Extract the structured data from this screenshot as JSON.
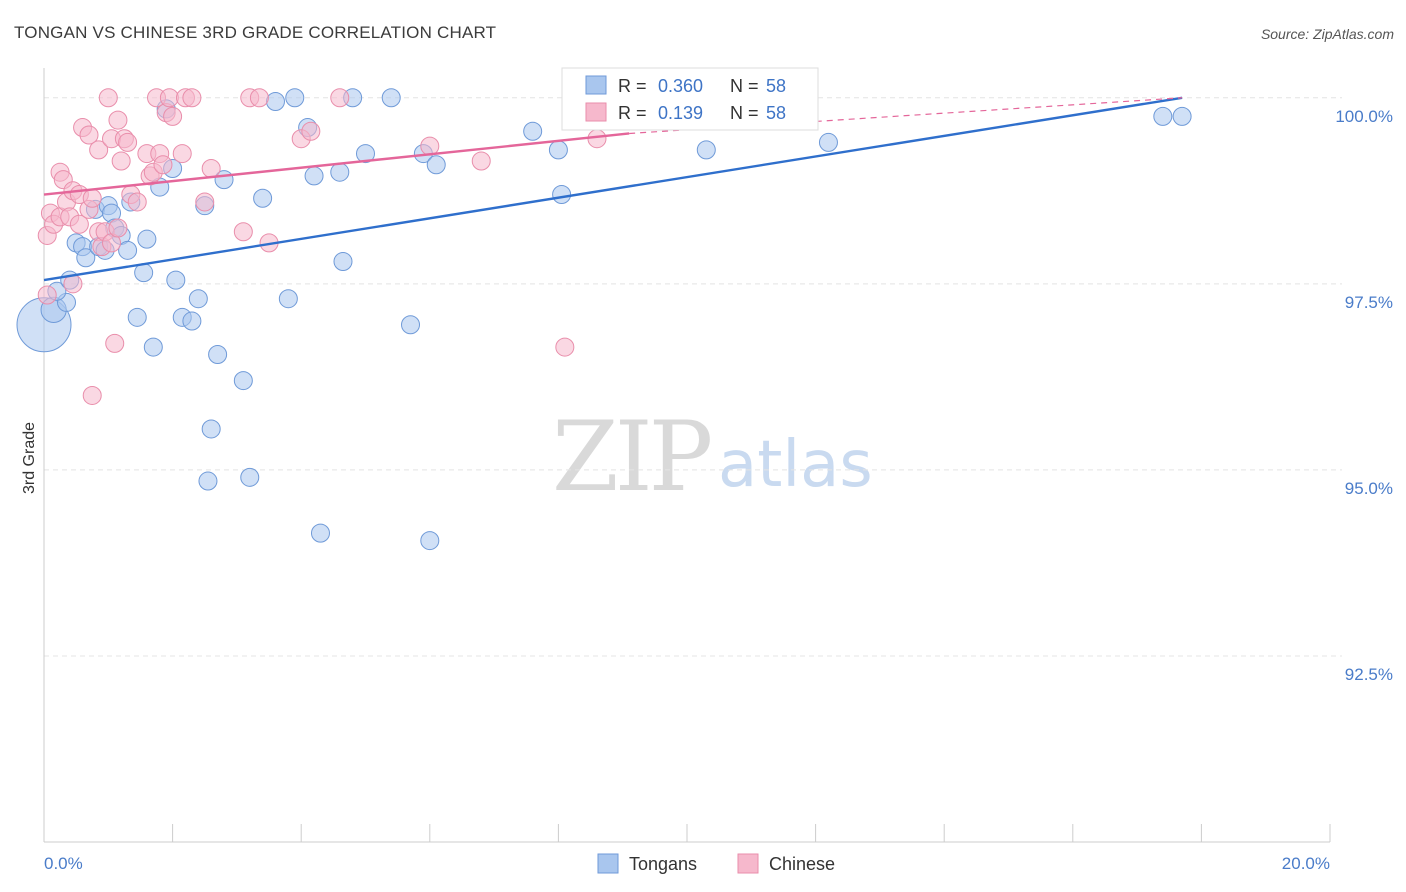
{
  "chart_data": {
    "type": "scatter",
    "title": "TONGAN VS CHINESE 3RD GRADE CORRELATION CHART",
    "source": "Source: ZipAtlas.com",
    "ylabel": "3rd Grade",
    "xlim": [
      0,
      20
    ],
    "ylim": [
      90,
      100.4
    ],
    "y_ticks": [
      {
        "value": 100,
        "label": "100.0%"
      },
      {
        "value": 97.5,
        "label": "97.5%"
      },
      {
        "value": 95,
        "label": "95.0%"
      },
      {
        "value": 92.5,
        "label": "92.5%"
      }
    ],
    "x_ticks": [
      {
        "value": 0,
        "label": "0.0%"
      },
      {
        "value": 20,
        "label": "20.0%"
      }
    ],
    "watermark": {
      "part1": "ZIP",
      "part2": "atlas"
    },
    "legend": {
      "items": [
        "Tongans",
        "Chinese"
      ]
    },
    "stats": [
      {
        "r_label": "R = ",
        "r": "0.360",
        "n_label": "N = ",
        "n": "58"
      },
      {
        "r_label": "R = ",
        "r": "0.139",
        "n_label": "N = ",
        "n": "58"
      }
    ],
    "series": [
      {
        "name": "Tongans",
        "fill": "#a9c6ee",
        "stroke": "#6f9ad8",
        "line_color": "#2f6fcc",
        "trend": {
          "x0": 0,
          "y0": 97.55,
          "x1": 17.7,
          "y1": 100.0
        },
        "points": [
          [
            0.0,
            96.95,
            3
          ],
          [
            0.15,
            97.15,
            1.4
          ],
          [
            0.35,
            97.25,
            1
          ],
          [
            0.2,
            97.4,
            1
          ],
          [
            0.4,
            97.55,
            1
          ],
          [
            0.5,
            98.05,
            1
          ],
          [
            0.6,
            98.0,
            1
          ],
          [
            0.65,
            97.85,
            1
          ],
          [
            0.8,
            98.5,
            1
          ],
          [
            0.85,
            98.0,
            1
          ],
          [
            0.95,
            97.95,
            1
          ],
          [
            1.0,
            98.55,
            1
          ],
          [
            1.05,
            98.45,
            1
          ],
          [
            1.1,
            98.25,
            1
          ],
          [
            1.2,
            98.15,
            1
          ],
          [
            1.3,
            97.95,
            1
          ],
          [
            1.35,
            98.6,
            1
          ],
          [
            1.45,
            97.05,
            1
          ],
          [
            1.55,
            97.65,
            1
          ],
          [
            1.6,
            98.1,
            1
          ],
          [
            1.7,
            96.65,
            1
          ],
          [
            1.8,
            98.8,
            1
          ],
          [
            1.9,
            99.85,
            1
          ],
          [
            2.0,
            99.05,
            1
          ],
          [
            2.05,
            97.55,
            1
          ],
          [
            2.15,
            97.05,
            1
          ],
          [
            2.3,
            97.0,
            1
          ],
          [
            2.4,
            97.3,
            1
          ],
          [
            2.5,
            98.55,
            1
          ],
          [
            2.55,
            94.85,
            1
          ],
          [
            2.6,
            95.55,
            1
          ],
          [
            2.7,
            96.55,
            1
          ],
          [
            2.8,
            98.9,
            1
          ],
          [
            3.1,
            96.2,
            1
          ],
          [
            3.2,
            94.9,
            1
          ],
          [
            3.4,
            98.65,
            1
          ],
          [
            3.6,
            99.95,
            1
          ],
          [
            3.8,
            97.3,
            1
          ],
          [
            3.9,
            100.0,
            1
          ],
          [
            4.1,
            99.6,
            1
          ],
          [
            4.2,
            98.95,
            1
          ],
          [
            4.3,
            94.15,
            1
          ],
          [
            4.6,
            99.0,
            1
          ],
          [
            4.65,
            97.8,
            1
          ],
          [
            4.8,
            100.0,
            1
          ],
          [
            5.0,
            99.25,
            1
          ],
          [
            5.4,
            100.0,
            1
          ],
          [
            5.7,
            96.95,
            1
          ],
          [
            5.9,
            99.25,
            1
          ],
          [
            6.0,
            94.05,
            1
          ],
          [
            6.1,
            99.1,
            1
          ],
          [
            7.6,
            99.55,
            1
          ],
          [
            8.0,
            99.3,
            1
          ],
          [
            8.05,
            98.7,
            1
          ],
          [
            10.3,
            99.3,
            1
          ],
          [
            12.2,
            99.4,
            1
          ],
          [
            17.4,
            99.75,
            1
          ],
          [
            17.7,
            99.75,
            1
          ]
        ]
      },
      {
        "name": "Chinese",
        "fill": "#f6b8cc",
        "stroke": "#e98eab",
        "line_color": "#e4669a",
        "trend": {
          "x0": 0,
          "y0": 98.7,
          "x1": 9.1,
          "y1": 99.52
        },
        "trend_ext": {
          "x0": 9.1,
          "y0": 99.52,
          "x1": 17.7,
          "y1": 100.0
        },
        "points": [
          [
            0.05,
            97.35,
            1
          ],
          [
            0.05,
            98.15,
            1
          ],
          [
            0.1,
            98.45,
            1
          ],
          [
            0.15,
            98.3,
            1
          ],
          [
            0.25,
            98.4,
            1
          ],
          [
            0.25,
            99.0,
            1
          ],
          [
            0.3,
            98.9,
            1
          ],
          [
            0.35,
            98.6,
            1
          ],
          [
            0.4,
            98.4,
            1
          ],
          [
            0.45,
            98.75,
            1
          ],
          [
            0.45,
            97.5,
            1
          ],
          [
            0.55,
            98.7,
            1
          ],
          [
            0.55,
            98.3,
            1
          ],
          [
            0.6,
            99.6,
            1
          ],
          [
            0.7,
            99.5,
            1
          ],
          [
            0.7,
            98.5,
            1
          ],
          [
            0.75,
            98.65,
            1
          ],
          [
            0.75,
            96.0,
            1
          ],
          [
            0.85,
            98.2,
            1
          ],
          [
            0.85,
            99.3,
            1
          ],
          [
            0.9,
            98.0,
            1
          ],
          [
            0.95,
            98.2,
            1
          ],
          [
            1.0,
            100.0,
            1
          ],
          [
            1.05,
            99.45,
            1
          ],
          [
            1.05,
            98.05,
            1
          ],
          [
            1.1,
            96.7,
            1
          ],
          [
            1.15,
            98.25,
            1
          ],
          [
            1.15,
            99.7,
            1
          ],
          [
            1.2,
            99.15,
            1
          ],
          [
            1.25,
            99.45,
            1
          ],
          [
            1.3,
            99.4,
            1
          ],
          [
            1.35,
            98.7,
            1
          ],
          [
            1.45,
            98.6,
            1
          ],
          [
            1.6,
            99.25,
            1
          ],
          [
            1.65,
            98.95,
            1
          ],
          [
            1.7,
            99.0,
            1
          ],
          [
            1.75,
            100.0,
            1
          ],
          [
            1.8,
            99.25,
            1
          ],
          [
            1.85,
            99.1,
            1
          ],
          [
            1.9,
            99.8,
            1
          ],
          [
            1.95,
            100.0,
            1
          ],
          [
            2.0,
            99.75,
            1
          ],
          [
            2.15,
            99.25,
            1
          ],
          [
            2.2,
            100.0,
            1
          ],
          [
            2.3,
            100.0,
            1
          ],
          [
            2.5,
            98.6,
            1
          ],
          [
            2.6,
            99.05,
            1
          ],
          [
            3.1,
            98.2,
            1
          ],
          [
            3.2,
            100.0,
            1
          ],
          [
            3.35,
            100.0,
            1
          ],
          [
            3.5,
            98.05,
            1
          ],
          [
            4.0,
            99.45,
            1
          ],
          [
            4.15,
            99.55,
            1
          ],
          [
            4.6,
            100.0,
            1
          ],
          [
            6.0,
            99.35,
            1
          ],
          [
            6.8,
            99.15,
            1
          ],
          [
            8.1,
            96.65,
            1
          ],
          [
            8.6,
            99.45,
            1
          ]
        ]
      }
    ]
  }
}
